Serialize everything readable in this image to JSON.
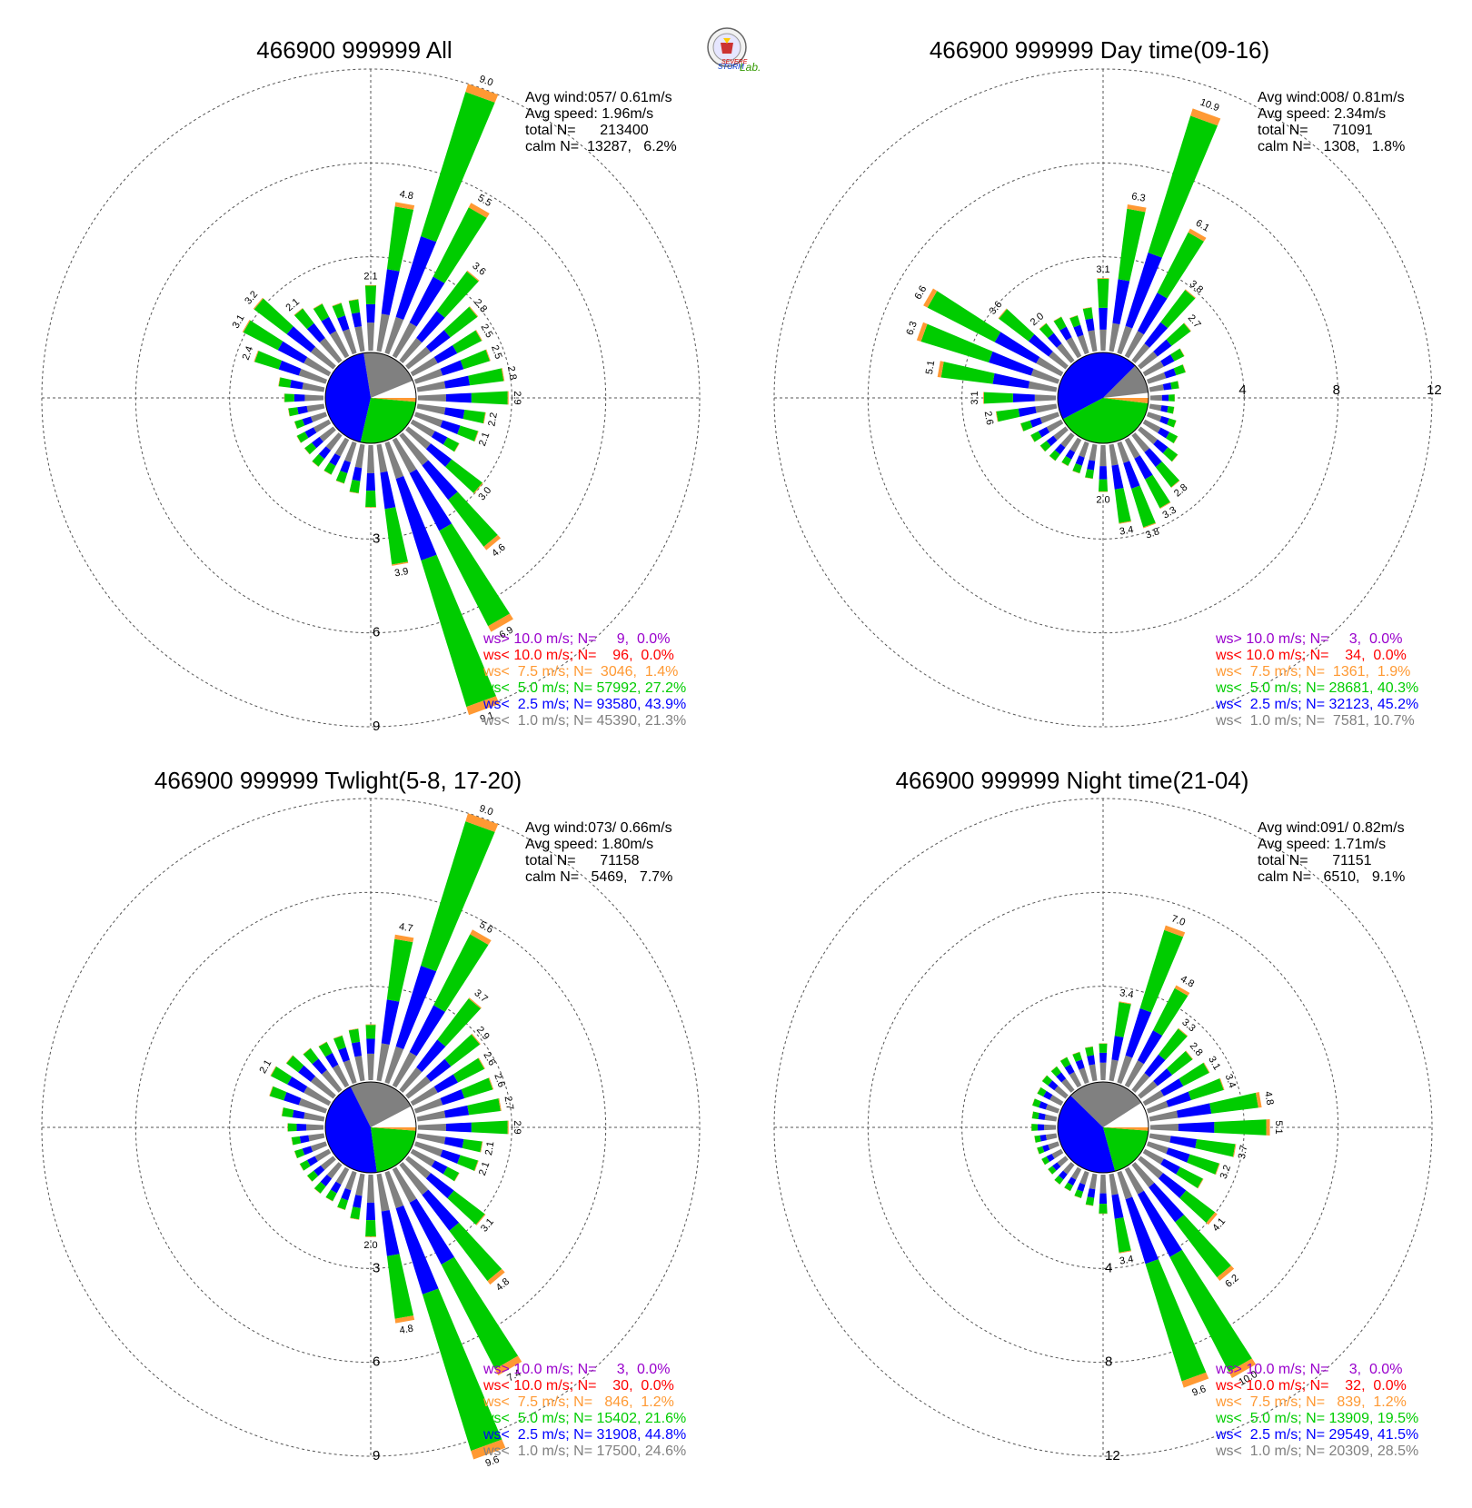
{
  "logo": {
    "text_severe": "SEVERE",
    "text_storm": "STORM",
    "text_lab": "Lab."
  },
  "colors": {
    "c_gt10": "#9900cc",
    "c_lt10": "#ff0000",
    "c_lt75": "#ff9933",
    "c_lt5": "#00cc00",
    "c_lt25": "#0000ff",
    "c_lt1": "#808080",
    "calm_pie_open": "#ffffff"
  },
  "chart_data": [
    {
      "type": "wind-rose",
      "title": "466900 999999 All",
      "stats": [
        "Avg wind:057/ 0.61m/s",
        "Avg speed: 1.96m/s",
        "total N=      213400",
        "calm N=  13287,   6.2%"
      ],
      "ring_labels": [
        "3",
        "6",
        "9"
      ],
      "ring_max": 9,
      "directions_deg": [
        0,
        10,
        20,
        30,
        40,
        50,
        60,
        70,
        80,
        90,
        100,
        110,
        120,
        130,
        140,
        150,
        160,
        170,
        180,
        190,
        200,
        210,
        220,
        230,
        240,
        250,
        260,
        270,
        280,
        290,
        300,
        310,
        320,
        330,
        340,
        350
      ],
      "totals": [
        2.1,
        4.8,
        9.0,
        5.5,
        3.6,
        2.8,
        2.5,
        2.5,
        2.8,
        2.9,
        2.2,
        2.1,
        1.6,
        3.0,
        4.6,
        6.9,
        9.1,
        3.9,
        2.0,
        1.5,
        1.3,
        1.2,
        1.2,
        1.1,
        1.1,
        1.0,
        1.1,
        1.2,
        1.4,
        2.4,
        3.1,
        3.2,
        2.1,
        1.8,
        1.6,
        1.6
      ],
      "labeled_totals": [
        2.1,
        4.8,
        9.0,
        5.5,
        3.6,
        2.8,
        2.5,
        2.5,
        2.8,
        2.9,
        2.2,
        2.1,
        null,
        3.0,
        4.6,
        6.9,
        9.1,
        3.9,
        null,
        null,
        null,
        null,
        null,
        null,
        null,
        null,
        null,
        null,
        null,
        2.4,
        3.1,
        3.2,
        2.1,
        null,
        null,
        null
      ],
      "legend": [
        "ws> 10.0 m/s; N=     9,  0.0%",
        "ws< 10.0 m/s; N=    96,  0.0%",
        "ws<  7.5 m/s; N=  3046,  1.4%",
        "ws<  5.0 m/s; N= 57992, 27.2%",
        "ws<  2.5 m/s; N= 93580, 43.9%",
        "ws<  1.0 m/s; N= 45390, 21.3%"
      ],
      "pie_percent": [
        6.2,
        21.3,
        43.9,
        27.2,
        1.4
      ]
    },
    {
      "type": "wind-rose",
      "title": "466900 999999 Day time(09-16)",
      "stats": [
        "Avg wind:008/ 0.81m/s",
        "Avg speed: 2.34m/s",
        "total N=      71091",
        "calm N=   1308,   1.8%"
      ],
      "ring_labels": [
        "4",
        "8",
        "12"
      ],
      "ring_max": 12,
      "directions_deg": [
        0,
        10,
        20,
        30,
        40,
        50,
        60,
        70,
        80,
        90,
        100,
        110,
        120,
        130,
        140,
        150,
        160,
        170,
        180,
        190,
        200,
        210,
        220,
        230,
        240,
        250,
        260,
        270,
        280,
        290,
        300,
        310,
        320,
        330,
        340,
        350
      ],
      "totals": [
        3.1,
        6.3,
        10.9,
        6.1,
        3.8,
        2.7,
        1.8,
        1.6,
        1.2,
        1.0,
        1.0,
        1.2,
        1.5,
        2.0,
        2.8,
        3.3,
        3.8,
        3.4,
        2.0,
        1.4,
        1.3,
        1.2,
        1.3,
        1.3,
        1.4,
        1.6,
        2.6,
        3.1,
        5.1,
        6.3,
        6.6,
        3.6,
        2.0,
        1.8,
        1.6,
        1.8
      ],
      "labeled_totals": [
        3.1,
        6.3,
        10.9,
        6.1,
        3.8,
        2.7,
        null,
        null,
        null,
        null,
        null,
        null,
        null,
        null,
        2.8,
        3.3,
        3.8,
        3.4,
        2.0,
        null,
        null,
        null,
        null,
        null,
        null,
        null,
        2.6,
        3.1,
        5.1,
        6.3,
        6.6,
        3.6,
        2.0,
        null,
        null,
        null
      ],
      "legend": [
        "ws> 10.0 m/s; N=     3,  0.0%",
        "ws< 10.0 m/s; N=    34,  0.0%",
        "ws<  7.5 m/s; N=  1361,  1.9%",
        "ws<  5.0 m/s; N= 28681, 40.3%",
        "ws<  2.5 m/s; N= 32123, 45.2%",
        "ws<  1.0 m/s; N=  7581, 10.7%"
      ],
      "pie_percent": [
        1.8,
        10.7,
        45.2,
        40.3,
        1.9
      ]
    },
    {
      "type": "wind-rose",
      "title": "466900 999999 Twlight(5-8, 17-20)",
      "stats": [
        "Avg wind:073/ 0.66m/s",
        "Avg speed: 1.80m/s",
        "total N=      71158",
        "calm N=   5469,   7.7%"
      ],
      "ring_labels": [
        "3",
        "6",
        "9"
      ],
      "ring_max": 9,
      "directions_deg": [
        0,
        10,
        20,
        30,
        40,
        50,
        60,
        70,
        80,
        90,
        100,
        110,
        120,
        130,
        140,
        150,
        160,
        170,
        180,
        190,
        200,
        210,
        220,
        230,
        240,
        250,
        260,
        270,
        280,
        290,
        300,
        310,
        320,
        330,
        340,
        350
      ],
      "totals": [
        1.7,
        4.7,
        9.0,
        5.6,
        3.7,
        2.9,
        2.6,
        2.6,
        2.7,
        2.9,
        2.1,
        2.1,
        1.6,
        3.1,
        4.8,
        7.4,
        9.6,
        4.8,
        2.0,
        1.4,
        1.2,
        1.1,
        1.1,
        1.0,
        1.0,
        1.0,
        1.0,
        1.1,
        1.3,
        1.8,
        2.1,
        1.8,
        1.6,
        1.5,
        1.5,
        1.6
      ],
      "labeled_totals": [
        null,
        4.7,
        9.0,
        5.6,
        3.7,
        2.9,
        2.6,
        2.6,
        2.7,
        2.9,
        2.1,
        2.1,
        null,
        3.1,
        4.8,
        7.4,
        9.6,
        4.8,
        2.0,
        null,
        null,
        null,
        null,
        null,
        null,
        null,
        null,
        null,
        null,
        null,
        2.1,
        null,
        null,
        null,
        null,
        null
      ],
      "legend": [
        "ws> 10.0 m/s; N=     3,  0.0%",
        "ws< 10.0 m/s; N=    30,  0.0%",
        "ws<  7.5 m/s; N=   846,  1.2%",
        "ws<  5.0 m/s; N= 15402, 21.6%",
        "ws<  2.5 m/s; N= 31908, 44.8%",
        "ws<  1.0 m/s; N= 17500, 24.6%"
      ],
      "pie_percent": [
        7.7,
        24.6,
        44.8,
        21.6,
        1.2
      ]
    },
    {
      "type": "wind-rose",
      "title": "466900 999999 Night time(21-04)",
      "stats": [
        "Avg wind:091/ 0.82m/s",
        "Avg speed: 1.71m/s",
        "total N=      71151",
        "calm N=   6510,   9.1%"
      ],
      "ring_labels": [
        "4",
        "8",
        "12"
      ],
      "ring_max": 12,
      "directions_deg": [
        0,
        10,
        20,
        30,
        40,
        50,
        60,
        70,
        80,
        90,
        100,
        110,
        120,
        130,
        140,
        150,
        160,
        170,
        180,
        190,
        200,
        210,
        220,
        230,
        240,
        250,
        260,
        270,
        280,
        290,
        300,
        310,
        320,
        330,
        340,
        350
      ],
      "totals": [
        1.5,
        3.4,
        7.0,
        4.8,
        3.3,
        2.8,
        3.1,
        3.4,
        4.8,
        5.1,
        3.7,
        3.2,
        2.8,
        4.1,
        6.2,
        10.0,
        9.6,
        3.4,
        1.6,
        1.3,
        1.1,
        1.0,
        1.0,
        0.9,
        0.9,
        0.9,
        0.9,
        1.0,
        1.0,
        1.1,
        1.1,
        1.2,
        1.2,
        1.3,
        1.3,
        1.4
      ],
      "labeled_totals": [
        null,
        3.4,
        7.0,
        4.8,
        3.3,
        2.8,
        3.1,
        3.4,
        4.8,
        5.1,
        3.7,
        3.2,
        null,
        4.1,
        6.2,
        10.0,
        9.6,
        3.4,
        null,
        null,
        null,
        null,
        null,
        null,
        null,
        null,
        null,
        null,
        null,
        null,
        null,
        null,
        null,
        null,
        null,
        null
      ],
      "legend": [
        "ws> 10.0 m/s; N=     3,  0.0%",
        "ws< 10.0 m/s; N=    32,  0.0%",
        "ws<  7.5 m/s; N=   839,  1.2%",
        "ws<  5.0 m/s; N= 13909, 19.5%",
        "ws<  2.5 m/s; N= 29549, 41.5%",
        "ws<  1.0 m/s; N= 20309, 28.5%"
      ],
      "pie_percent": [
        9.1,
        28.5,
        41.5,
        19.5,
        1.2
      ]
    }
  ]
}
